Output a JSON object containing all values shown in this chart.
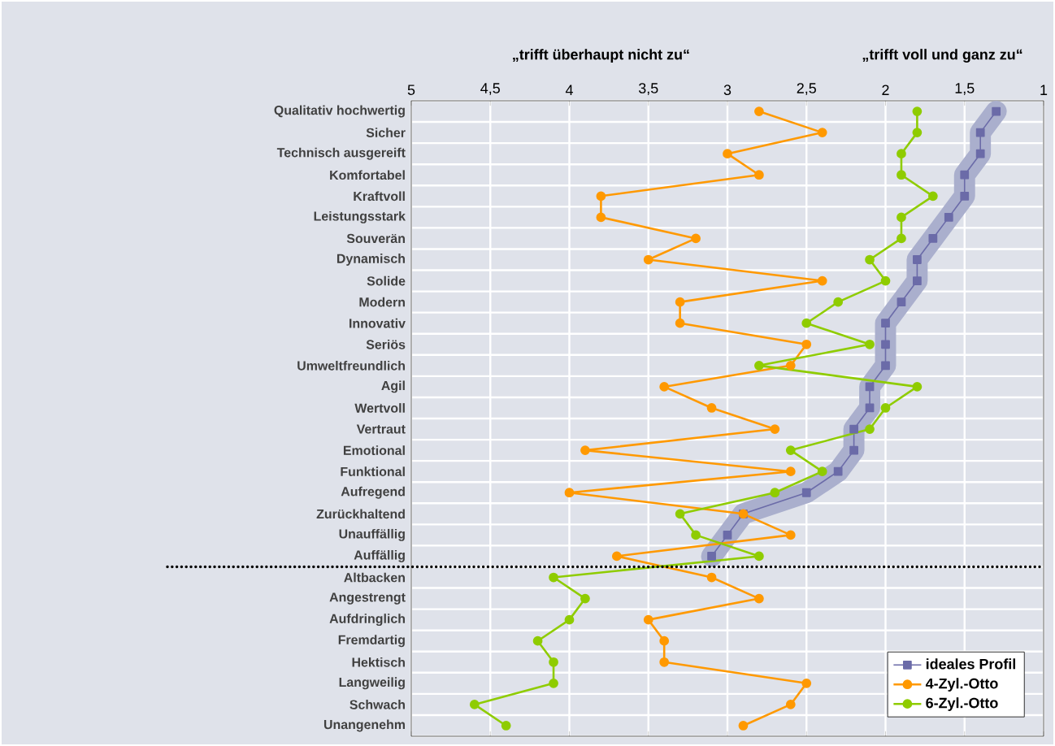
{
  "chart_data": {
    "type": "line",
    "orientation": "horizontal",
    "annotations": [
      "„trifft überhaupt nicht zu“",
      "„trifft voll und ganz zu“"
    ],
    "categories": [
      "Qualitativ hochwertig",
      "Sicher",
      "Technisch ausgereift",
      "Komfortabel",
      "Kraftvoll",
      "Leistungsstark",
      "Souverän",
      "Dynamisch",
      "Solide",
      "Modern",
      "Innovativ",
      "Seriös",
      "Umweltfreundlich",
      "Agil",
      "Wertvoll",
      "Vertraut",
      "Emotional",
      "Funktional",
      "Aufregend",
      "Zurückhaltend",
      "Unauffällig",
      "Auffällig",
      "Altbacken",
      "Angestrengt",
      "Aufdringlich",
      "Fremdartig",
      "Hektisch",
      "Langweilig",
      "Schwach",
      "Unangenehm"
    ],
    "series": [
      {
        "name": "ideales Profil",
        "color": "#6b6ba8",
        "marker": "square",
        "values": [
          1.3,
          1.4,
          1.4,
          1.5,
          1.5,
          1.6,
          1.7,
          1.8,
          1.8,
          1.9,
          2.0,
          2.0,
          2.0,
          2.1,
          2.1,
          2.2,
          2.2,
          2.3,
          2.5,
          2.9,
          3.0,
          3.1,
          null,
          null,
          null,
          null,
          null,
          null,
          null,
          null
        ]
      },
      {
        "name": "4-Zyl.-Otto",
        "color": "#ff9900",
        "marker": "circle",
        "values": [
          2.8,
          2.4,
          3.0,
          2.8,
          3.8,
          3.8,
          3.2,
          3.5,
          2.4,
          3.3,
          3.3,
          2.5,
          2.6,
          3.4,
          3.1,
          2.7,
          3.9,
          2.6,
          4.0,
          2.9,
          2.6,
          3.7,
          3.1,
          2.8,
          3.5,
          3.4,
          3.4,
          2.5,
          2.6,
          2.9
        ]
      },
      {
        "name": "6-Zyl.-Otto",
        "color": "#8fcc00",
        "marker": "circle",
        "values": [
          1.8,
          1.8,
          1.9,
          1.9,
          1.7,
          1.9,
          1.9,
          2.1,
          2.0,
          2.3,
          2.5,
          2.1,
          2.8,
          1.8,
          2.0,
          2.1,
          2.6,
          2.4,
          2.7,
          3.3,
          3.2,
          2.8,
          4.1,
          3.9,
          4.0,
          4.2,
          4.1,
          4.1,
          4.6,
          4.4
        ]
      }
    ],
    "xlim": [
      5,
      1
    ],
    "xticks": [
      5,
      {
        "value": 4.5,
        "label": "4,5"
      },
      4,
      {
        "value": 3.5,
        "label": "3,5"
      },
      3,
      {
        "value": 2.5,
        "label": "2,5"
      },
      2,
      {
        "value": 1.5,
        "label": "1,5"
      },
      1
    ],
    "grid": true,
    "legend": "bottom right",
    "line_style": "solid"
  }
}
